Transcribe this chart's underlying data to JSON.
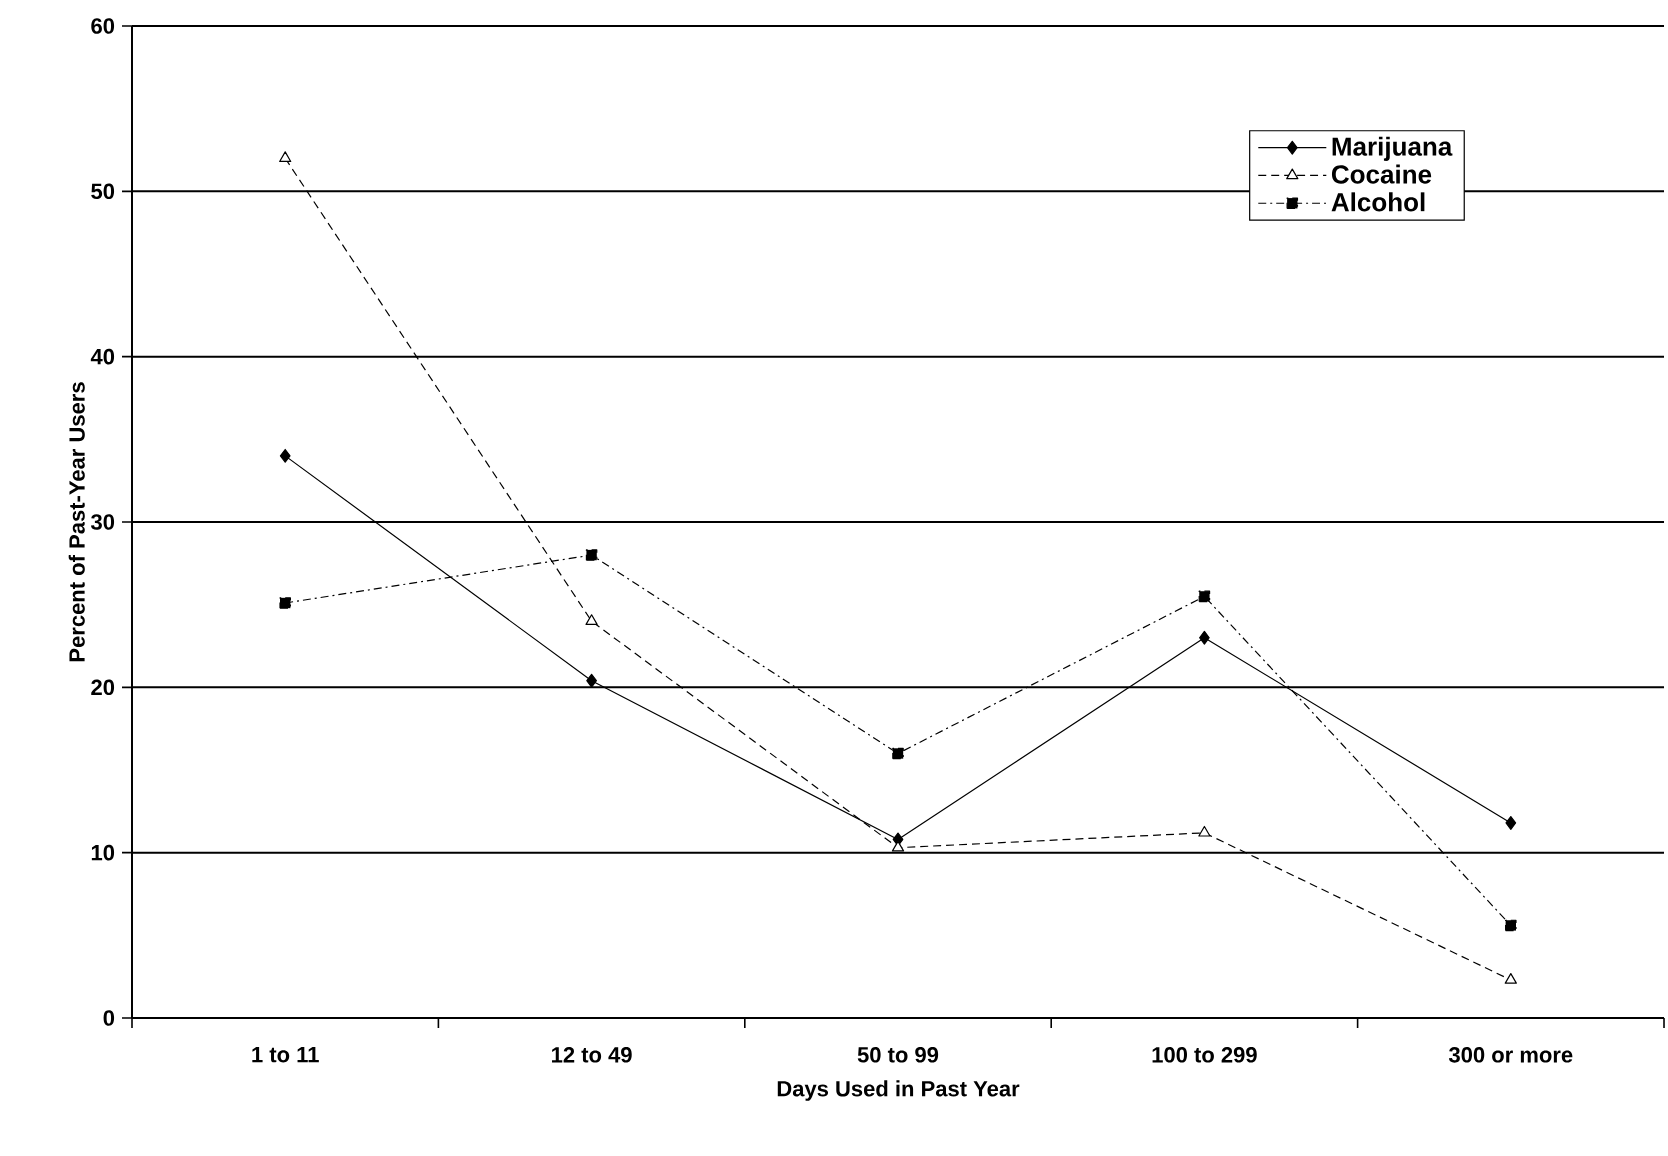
{
  "chart_data": {
    "type": "line",
    "xlabel": "Days Used in Past Year",
    "ylabel": "Percent of Past-Year Users",
    "categories": [
      "1 to 11",
      "12 to 49",
      "50 to 99",
      "100 to 299",
      "300 or more"
    ],
    "series": [
      {
        "name": "Marijuana",
        "color": "#000000",
        "marker": "diamond",
        "line_style": "solid",
        "values": [
          34,
          20.4,
          10.8,
          23,
          11.8
        ]
      },
      {
        "name": "Cocaine",
        "color": "#000000",
        "marker": "triangle",
        "line_style": "dashed",
        "values": [
          52,
          24,
          10.3,
          11.2,
          2.3
        ]
      },
      {
        "name": "Alcohol",
        "color": "#000000",
        "marker": "square",
        "line_style": "dashdot",
        "values": [
          25.1,
          28,
          16,
          25.5,
          5.6
        ]
      }
    ],
    "ylim": [
      0,
      60
    ],
    "yticks": [
      0,
      10,
      20,
      30,
      40,
      50,
      60
    ],
    "grid": "y",
    "legend": "top right"
  }
}
